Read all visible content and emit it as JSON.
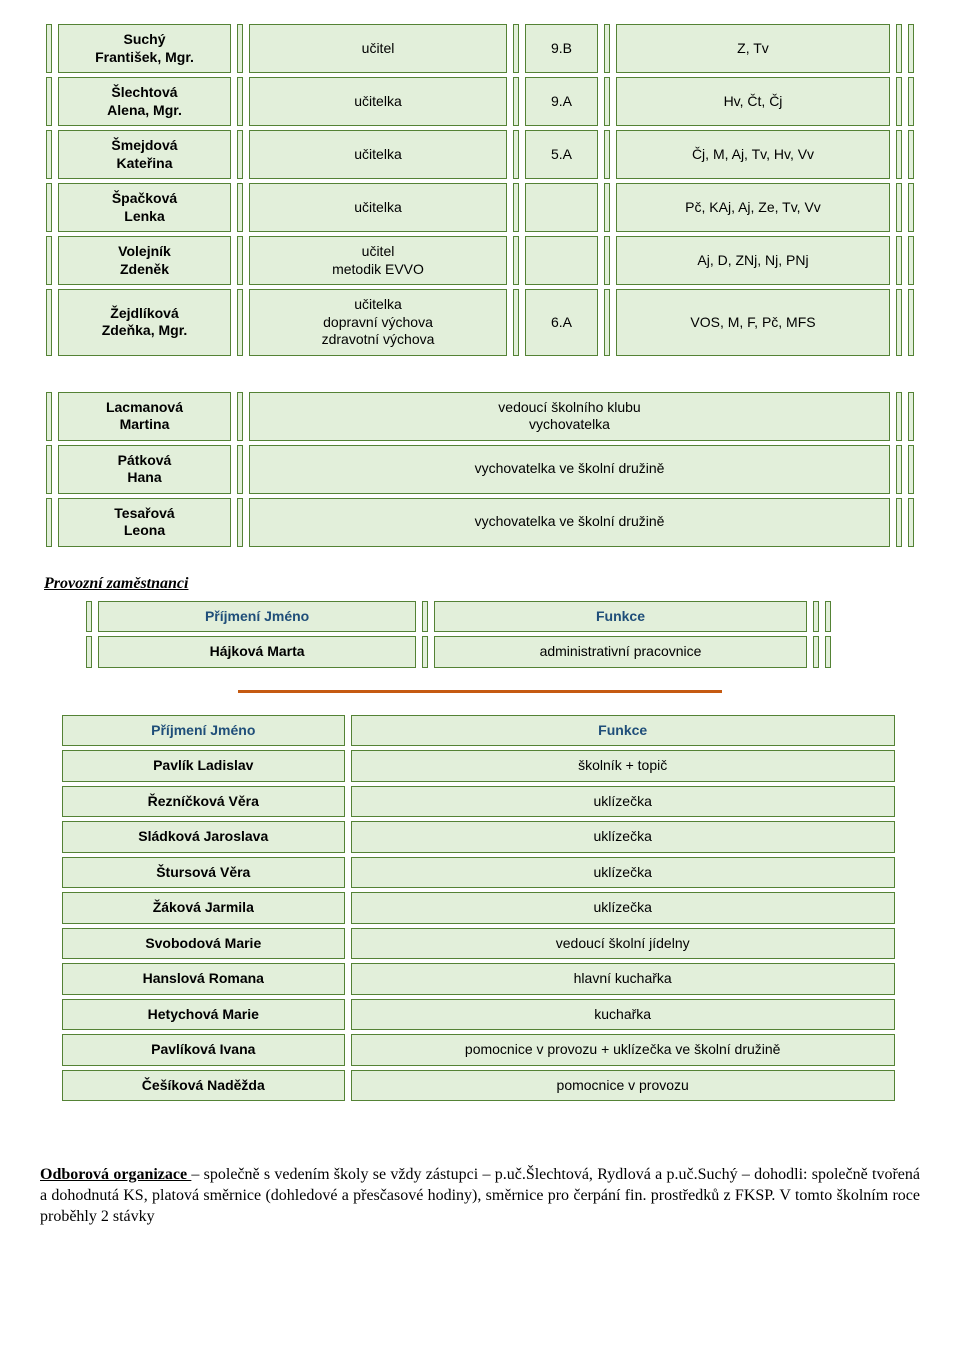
{
  "staff": [
    {
      "name": "Suchý\nFrantišek, Mgr.",
      "role": "učitel",
      "cls": "9.B",
      "subj": "Z, Tv"
    },
    {
      "name": "Šlechtová\nAlena, Mgr.",
      "role": "učitelka",
      "cls": "9.A",
      "subj": "Hv, Čt, Čj"
    },
    {
      "name": "Šmejdová\nKateřina",
      "role": "učitelka",
      "cls": "5.A",
      "subj": "Čj, M, Aj, Tv, Hv, Vv"
    },
    {
      "name": "Špačková\nLenka",
      "role": "učitelka",
      "cls": "",
      "subj": "Pč, KAj, Aj, Ze, Tv, Vv"
    },
    {
      "name": "Volejník\nZdeněk",
      "role": "učitel\nmetodik EVVO",
      "cls": "",
      "subj": "Aj, D, ZNj, Nj, PNj"
    },
    {
      "name": "Žejdlíková\nZdeňka, Mgr.",
      "role": "učitelka\ndopravní výchova\nzdravotní výchova",
      "cls": "6.A",
      "subj": "VOS, M, F, Pč, MFS"
    }
  ],
  "caretakers": [
    {
      "name": "Lacmanová\nMartina",
      "role": "vedoucí školního klubu\nvychovatelka"
    },
    {
      "name": "Pátková\nHana",
      "role": "vychovatelka ve školní družině"
    },
    {
      "name": "Tesařová\nLeona",
      "role": "vychovatelka ve školní družině"
    }
  ],
  "provozni_title": "Provozní zaměstnanci",
  "admin": {
    "header": {
      "col1": "Příjmení Jméno",
      "col2": "Funkce"
    },
    "rows": [
      {
        "name": "Hájková Marta",
        "func": "administrativní pracovnice"
      }
    ]
  },
  "ops": {
    "header": {
      "col1": "Příjmení Jméno",
      "col2": "Funkce"
    },
    "rows": [
      {
        "name": "Pavlík Ladislav",
        "func": "školník + topič"
      },
      {
        "name": "Řezníčková Věra",
        "func": "uklízečka"
      },
      {
        "name": "Sládková Jaroslava",
        "func": "uklízečka"
      },
      {
        "name": "Štursová Věra",
        "func": "uklízečka"
      },
      {
        "name": "Žáková Jarmila",
        "func": "uklízečka"
      },
      {
        "name": "Svobodová Marie",
        "func": "vedoucí školní jídelny"
      },
      {
        "name": "Hanslová Romana",
        "func": "hlavní kuchařka"
      },
      {
        "name": "Hetychová Marie",
        "func": "kuchařka"
      },
      {
        "name": "Pavlíková Ivana",
        "func": "pomocnice v provozu + uklízečka ve školní družině"
      },
      {
        "name": "Češíková Naděžda",
        "func": "pomocnice v provozu"
      }
    ]
  },
  "paragraph": {
    "lead": "Odborová organizace ",
    "rest": "– společně s vedením školy se vždy zástupci – p.uč.Šlechtová, Rydlová a p.uč.Suchý – dohodli: společně tvořená a dohodnutá KS, platová směrnice (dohledové a přesčasové hodiny), směrnice pro čerpání fin. prostředků z FKSP. V tomto školním roce proběhly 2 stávky"
  }
}
